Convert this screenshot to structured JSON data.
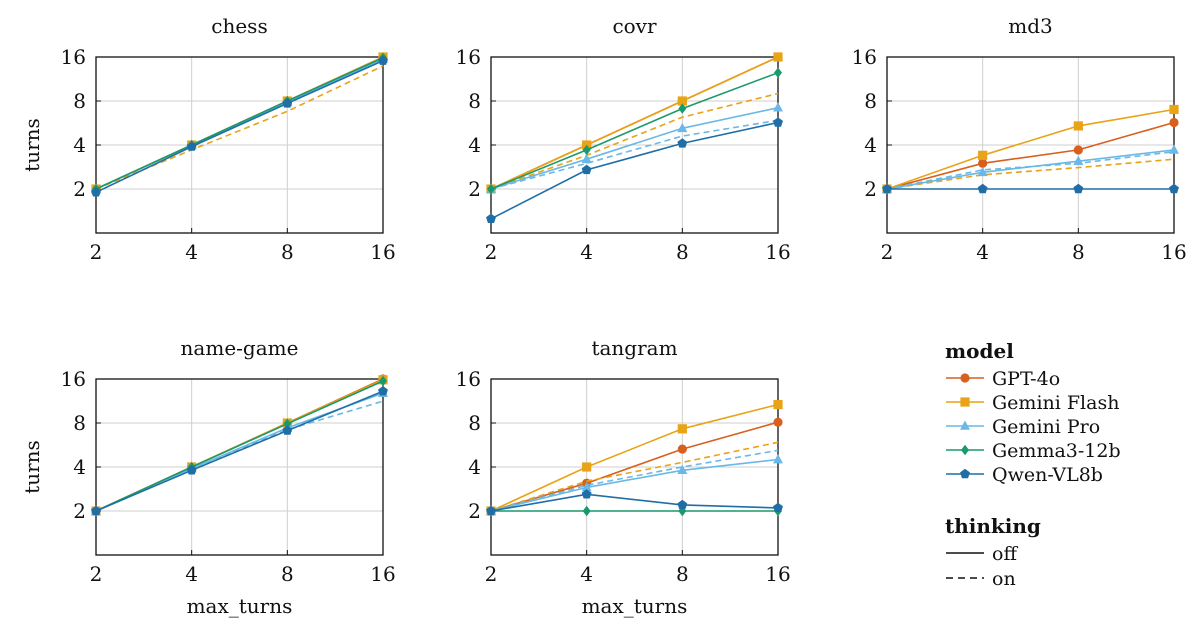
{
  "colors": {
    "GPT-4o": "#d95f1e",
    "Gemini Flash": "#e8a317",
    "Gemini Pro": "#6ab8e6",
    "Gemma3-12b": "#1a9a6b",
    "Qwen-VL8b": "#1f6fa6"
  },
  "markers": {
    "GPT-4o": "circle",
    "Gemini Flash": "square",
    "Gemini Pro": "triangle",
    "Gemma3-12b": "diamond",
    "Qwen-VL8b": "pentagon"
  },
  "legend": {
    "model_title": "model",
    "models": [
      "GPT-4o",
      "Gemini Flash",
      "Gemini Pro",
      "Gemma3-12b",
      "Qwen-VL8b"
    ],
    "thinking_title": "thinking",
    "thinking": [
      {
        "label": "off",
        "style": "solid"
      },
      {
        "label": "on",
        "style": "dashed"
      }
    ]
  },
  "chart_data": [
    {
      "type": "line",
      "title": "chess",
      "xlabel": "",
      "ylabel": "turns",
      "x": [
        2,
        4,
        8,
        16
      ],
      "xticks": [
        "2",
        "4",
        "8",
        "16"
      ],
      "yticks": [
        "2",
        "4",
        "8",
        "16"
      ],
      "xscale": "log2",
      "yscale": "log2",
      "xlim": [
        2,
        16
      ],
      "ylim": [
        1,
        16
      ],
      "grid": true,
      "series": [
        {
          "model": "GPT-4o",
          "thinking": "off",
          "values": [
            2,
            4,
            8,
            16
          ]
        },
        {
          "model": "Gemini Flash",
          "thinking": "off",
          "values": [
            2,
            4,
            8,
            16
          ]
        },
        {
          "model": "Gemini Flash",
          "thinking": "on",
          "values": [
            2,
            3.7,
            6.8,
            13.9
          ]
        },
        {
          "model": "Gemini Pro",
          "thinking": "off",
          "values": [
            2,
            4,
            7.8,
            15.5
          ]
        },
        {
          "model": "Gemma3-12b",
          "thinking": "off",
          "values": [
            2,
            4,
            8,
            15.8
          ]
        },
        {
          "model": "Qwen-VL8b",
          "thinking": "off",
          "values": [
            1.9,
            3.9,
            7.7,
            15.1
          ]
        }
      ]
    },
    {
      "type": "line",
      "title": "covr",
      "xlabel": "",
      "ylabel": "",
      "x": [
        2,
        4,
        8,
        16
      ],
      "xticks": [
        "2",
        "4",
        "8",
        "16"
      ],
      "yticks": [
        "2",
        "4",
        "8",
        "16"
      ],
      "xscale": "log2",
      "yscale": "log2",
      "xlim": [
        2,
        16
      ],
      "ylim": [
        1,
        16
      ],
      "grid": true,
      "series": [
        {
          "model": "GPT-4o",
          "thinking": "off",
          "values": [
            2,
            4,
            8,
            16
          ]
        },
        {
          "model": "Gemini Flash",
          "thinking": "off",
          "values": [
            2,
            4,
            8,
            16
          ]
        },
        {
          "model": "Gemini Flash",
          "thinking": "on",
          "values": [
            2,
            3.4,
            6.2,
            9
          ]
        },
        {
          "model": "Gemini Pro",
          "thinking": "off",
          "values": [
            2,
            3.2,
            5.2,
            7.2
          ]
        },
        {
          "model": "Gemini Pro",
          "thinking": "on",
          "values": [
            2,
            3,
            4.6,
            5.9
          ]
        },
        {
          "model": "Gemma3-12b",
          "thinking": "off",
          "values": [
            2,
            3.7,
            7.1,
            12.5
          ]
        },
        {
          "model": "Qwen-VL8b",
          "thinking": "off",
          "values": [
            1.25,
            2.7,
            4.1,
            5.7
          ]
        }
      ]
    },
    {
      "type": "line",
      "title": "md3",
      "xlabel": "",
      "ylabel": "",
      "x": [
        2,
        4,
        8,
        16
      ],
      "xticks": [
        "2",
        "4",
        "8",
        "16"
      ],
      "yticks": [
        "2",
        "4",
        "8",
        "16"
      ],
      "xscale": "log2",
      "yscale": "log2",
      "xlim": [
        2,
        16
      ],
      "ylim": [
        1,
        16
      ],
      "grid": true,
      "series": [
        {
          "model": "GPT-4o",
          "thinking": "off",
          "values": [
            2,
            3,
            3.7,
            5.7
          ]
        },
        {
          "model": "Gemini Flash",
          "thinking": "off",
          "values": [
            2,
            3.4,
            5.4,
            7
          ]
        },
        {
          "model": "Gemini Flash",
          "thinking": "on",
          "values": [
            2,
            2.5,
            2.8,
            3.2
          ]
        },
        {
          "model": "Gemini Pro",
          "thinking": "off",
          "values": [
            2,
            2.6,
            3.1,
            3.7
          ]
        },
        {
          "model": "Gemini Pro",
          "thinking": "on",
          "values": [
            2,
            2.7,
            3,
            3.6
          ]
        },
        {
          "model": "Qwen-VL8b",
          "thinking": "off",
          "values": [
            2,
            2,
            2,
            2
          ]
        }
      ]
    },
    {
      "type": "line",
      "title": "name-game",
      "xlabel": "max_turns",
      "ylabel": "turns",
      "x": [
        2,
        4,
        8,
        16
      ],
      "xticks": [
        "2",
        "4",
        "8",
        "16"
      ],
      "yticks": [
        "2",
        "4",
        "8",
        "16"
      ],
      "xscale": "log2",
      "yscale": "log2",
      "xlim": [
        2,
        16
      ],
      "ylim": [
        1,
        16
      ],
      "grid": true,
      "series": [
        {
          "model": "GPT-4o",
          "thinking": "off",
          "values": [
            2,
            4,
            8,
            16
          ]
        },
        {
          "model": "Gemini Flash",
          "thinking": "off",
          "values": [
            2,
            4,
            8,
            15.8
          ]
        },
        {
          "model": "Gemini Pro",
          "thinking": "off",
          "values": [
            2,
            3.9,
            7.4,
            12.8
          ]
        },
        {
          "model": "Gemini Pro",
          "thinking": "on",
          "values": [
            2,
            3.9,
            7.2,
            11.3
          ]
        },
        {
          "model": "Gemma3-12b",
          "thinking": "off",
          "values": [
            2,
            4,
            7.9,
            15.5
          ]
        },
        {
          "model": "Qwen-VL8b",
          "thinking": "off",
          "values": [
            2,
            3.8,
            7.1,
            13.2
          ]
        }
      ]
    },
    {
      "type": "line",
      "title": "tangram",
      "xlabel": "max_turns",
      "ylabel": "",
      "x": [
        2,
        4,
        8,
        16
      ],
      "xticks": [
        "2",
        "4",
        "8",
        "16"
      ],
      "yticks": [
        "2",
        "4",
        "8",
        "16"
      ],
      "xscale": "log2",
      "yscale": "log2",
      "xlim": [
        2,
        16
      ],
      "ylim": [
        1,
        16
      ],
      "grid": true,
      "series": [
        {
          "model": "GPT-4o",
          "thinking": "off",
          "values": [
            2,
            3.1,
            5.3,
            8.1
          ]
        },
        {
          "model": "Gemini Flash",
          "thinking": "off",
          "values": [
            2,
            4,
            7.3,
            10.7
          ]
        },
        {
          "model": "Gemini Flash",
          "thinking": "on",
          "values": [
            2,
            3.2,
            4.3,
            5.9
          ]
        },
        {
          "model": "Gemini Pro",
          "thinking": "off",
          "values": [
            2,
            2.9,
            3.8,
            4.5
          ]
        },
        {
          "model": "Gemini Pro",
          "thinking": "on",
          "values": [
            2,
            3,
            4,
            5.2
          ]
        },
        {
          "model": "Gemma3-12b",
          "thinking": "off",
          "values": [
            2,
            2,
            2,
            2
          ]
        },
        {
          "model": "Qwen-VL8b",
          "thinking": "off",
          "values": [
            2,
            2.6,
            2.2,
            2.1
          ]
        }
      ]
    }
  ]
}
